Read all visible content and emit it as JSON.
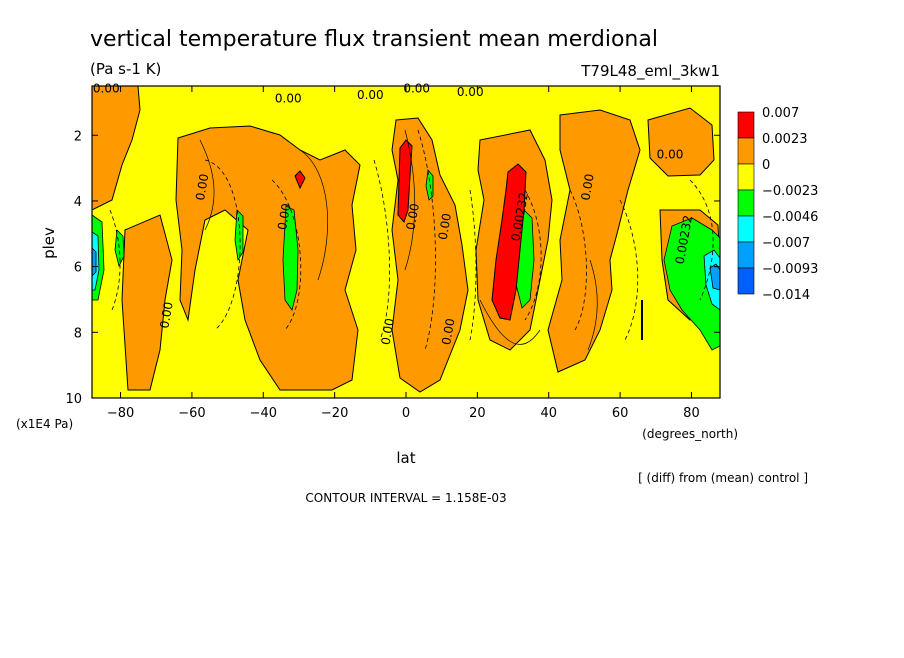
{
  "chart_data": {
    "type": "heatmap",
    "subtype": "filled-contour",
    "title": "vertical temperature flux transient mean merdional",
    "units": "(Pa s-1 K)",
    "experiment": "T79L48_eml_3kw1",
    "xlabel": "lat",
    "x_units": "(degrees_north)",
    "ylabel": "plev",
    "y_units": "(x1E4 Pa)",
    "x_ticks": [
      -80,
      -60,
      -40,
      -20,
      0,
      20,
      40,
      60,
      80
    ],
    "y_ticks": [
      2,
      4,
      6,
      8,
      10
    ],
    "xlim": [
      -88,
      88
    ],
    "ylim": [
      0.5,
      10
    ],
    "y_inverted": true,
    "note": "[ (diff) from (mean) control ]",
    "contour_interval_text": "CONTOUR INTERVAL = 1.158E-03",
    "legend": [
      {
        "label": "0.007",
        "color": "#ff0000"
      },
      {
        "label": "0.0023",
        "color": "#ff9900"
      },
      {
        "label": "0",
        "color": "#ffff00"
      },
      {
        "label": "−0.0023",
        "color": "#00ff00"
      },
      {
        "label": "−0.0046",
        "color": "#00ffff"
      },
      {
        "label": "−0.007",
        "color": "#00a0ff"
      },
      {
        "label": "−0.0093",
        "color": "#0060ff"
      },
      {
        "label": "−0.014",
        "color": ""
      }
    ],
    "contour_labels": [
      {
        "text": "0.00",
        "lat": -84,
        "plev": 0.7
      },
      {
        "text": "0.00",
        "lat": -33,
        "plev": 1.0
      },
      {
        "text": "0.00",
        "lat": -10,
        "plev": 0.9
      },
      {
        "text": "0.00",
        "lat": 3,
        "plev": 0.7
      },
      {
        "text": "0.00",
        "lat": 18,
        "plev": 0.8
      },
      {
        "text": "0.00",
        "lat": -56,
        "plev": 3.6
      },
      {
        "text": "0.00",
        "lat": -33,
        "plev": 4.5
      },
      {
        "text": "0.00",
        "lat": 3,
        "plev": 4.5
      },
      {
        "text": "0.00",
        "lat": 12,
        "plev": 4.8
      },
      {
        "text": "0.00232",
        "lat": 33,
        "plev": 4.5
      },
      {
        "text": "0.00",
        "lat": 52,
        "plev": 3.6
      },
      {
        "text": "0.00",
        "lat": 74,
        "plev": 2.7
      },
      {
        "text": "0.00232",
        "lat": 79,
        "plev": 5.2
      },
      {
        "text": "0.00",
        "lat": -66,
        "plev": 7.5
      },
      {
        "text": "0.00",
        "lat": -4,
        "plev": 8.0
      },
      {
        "text": "0.00",
        "lat": 13,
        "plev": 8.0
      }
    ]
  }
}
